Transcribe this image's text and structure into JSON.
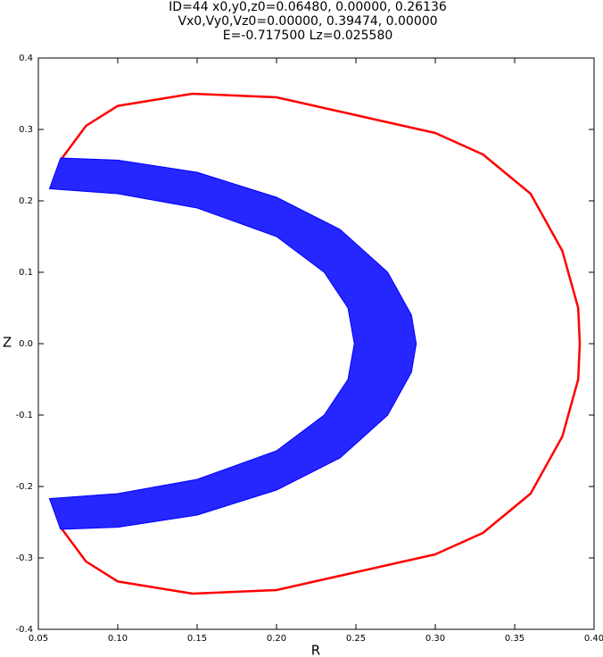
{
  "chart_data": {
    "type": "line",
    "title": [
      "ID=44      x0,y0,z0=0.06480, 0.00000, 0.26136",
      "Vx0,Vy0,Vz0=0.00000, 0.39474, 0.00000",
      "E=-0.717500    Lz=0.025580"
    ],
    "x_label": "R",
    "y_label": "Z",
    "xlim": [
      0.05,
      0.4
    ],
    "ylim": [
      -0.4,
      0.4
    ],
    "xticks": [
      0.05,
      {
        "value": 0.1,
        "label": "0.10"
      },
      0.15,
      {
        "value": 0.2,
        "label": "0.20"
      },
      0.25,
      {
        "value": 0.3,
        "label": "0.30"
      },
      0.35,
      {
        "value": 0.4,
        "label": "0.40"
      }
    ],
    "yticks": [
      -0.4,
      -0.3,
      -0.2,
      -0.1,
      {
        "value": 0,
        "label": "0.0"
      },
      0.1,
      0.2,
      0.3,
      0.4
    ],
    "grid": false,
    "series": [
      {
        "color": "#ff0000",
        "filled": false,
        "x": [
          0.065,
          0.08,
          0.1,
          0.147,
          0.2,
          0.25,
          0.3,
          0.33,
          0.36,
          0.38,
          0.39,
          0.391,
          0.39,
          0.38,
          0.36,
          0.33,
          0.3,
          0.25,
          0.2,
          0.147,
          0.1,
          0.08,
          0.065
        ],
        "y": [
          0.26,
          0.305,
          0.333,
          0.35,
          0.345,
          0.32,
          0.295,
          0.265,
          0.21,
          0.13,
          0.05,
          0,
          -0.05,
          -0.13,
          -0.21,
          -0.265,
          -0.295,
          -0.32,
          -0.345,
          -0.35,
          -0.333,
          -0.305,
          -0.26
        ]
      },
      {
        "color": "#0000ff",
        "filled": true,
        "x": [
          0.064,
          0.1,
          0.15,
          0.2,
          0.24,
          0.27,
          0.285,
          0.288,
          0.285,
          0.27,
          0.24,
          0.2,
          0.15,
          0.1,
          0.064,
          0.057,
          0.1,
          0.15,
          0.2,
          0.23,
          0.245,
          0.249,
          0.245,
          0.23,
          0.2,
          0.15,
          0.1,
          0.057
        ],
        "y": [
          0.26,
          0.257,
          0.24,
          0.205,
          0.16,
          0.1,
          0.04,
          0,
          -0.04,
          -0.1,
          -0.16,
          -0.205,
          -0.24,
          -0.257,
          -0.26,
          -0.217,
          -0.21,
          -0.19,
          -0.15,
          -0.1,
          -0.05,
          0,
          0.05,
          0.1,
          0.15,
          0.19,
          0.21,
          0.217
        ]
      }
    ]
  }
}
